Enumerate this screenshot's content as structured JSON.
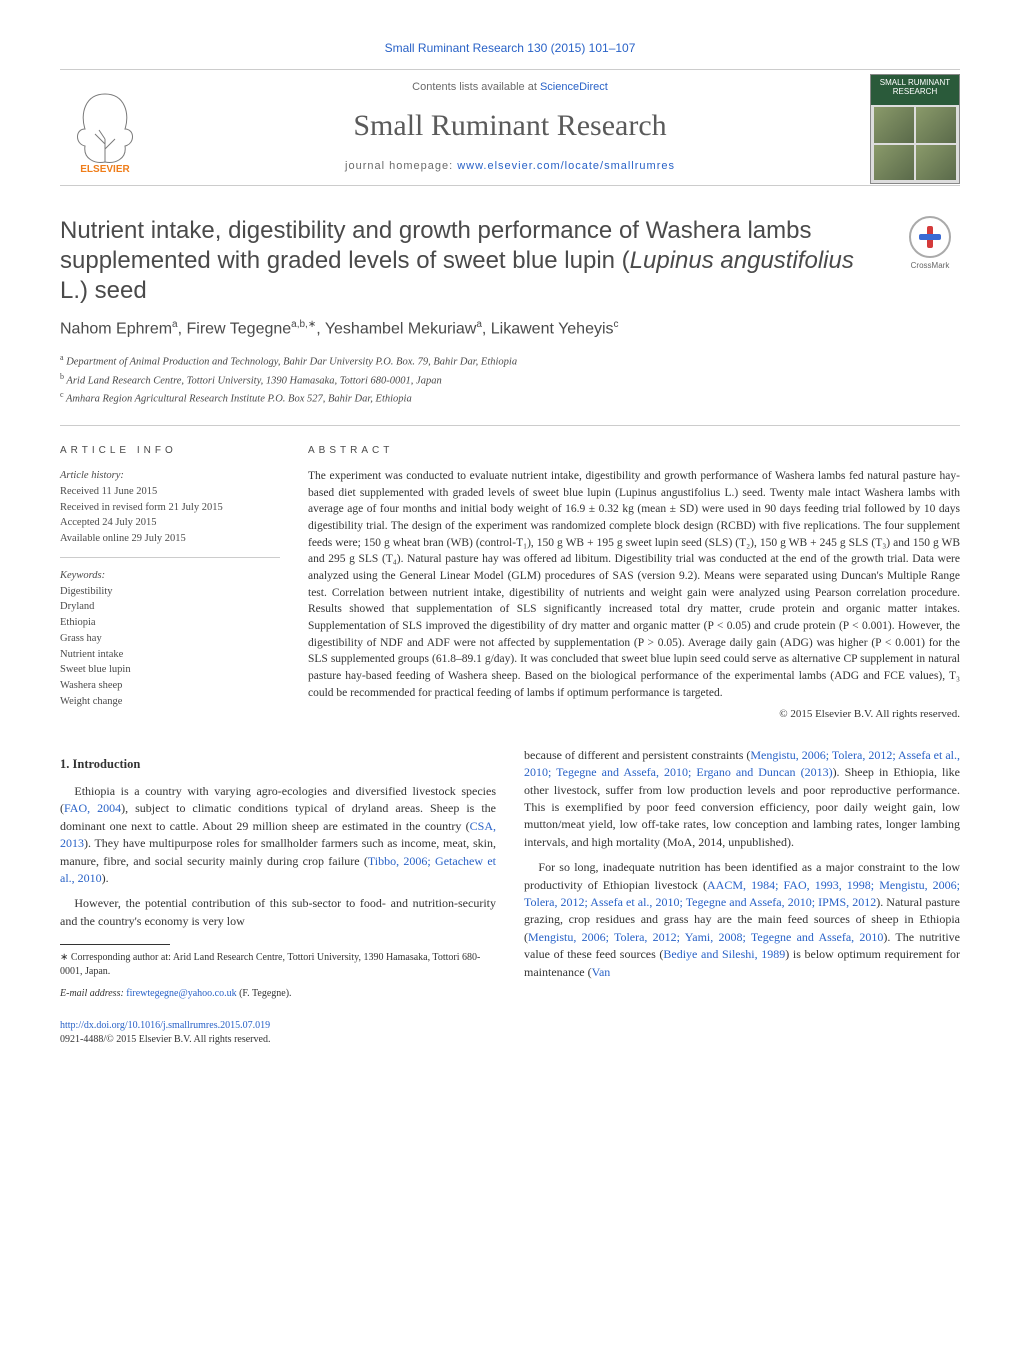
{
  "journal_ref": {
    "prefix": "Small Ruminant Research 130 (2015) 101–107",
    "link_label": "Small Ruminant Research"
  },
  "header": {
    "contents_prefix": "Contents lists available at ",
    "contents_link": "ScienceDirect",
    "journal_title": "Small Ruminant Research",
    "homepage_prefix": "journal homepage: ",
    "homepage_link": "www.elsevier.com/locate/smallrumres",
    "cover_text": "SMALL RUMINANT RESEARCH"
  },
  "crossmark_label": "CrossMark",
  "title": {
    "line1": "Nutrient intake, digestibility and growth performance of Washera lambs supplemented with graded levels of sweet blue lupin (",
    "italic": "Lupinus angustifolius",
    "line2": " L.) seed"
  },
  "authors_html": "Nahom Ephrem<sup>a</sup>, Firew Tegegne<sup>a,b,∗</sup>, Yeshambel Mekuriaw<sup>a</sup>, Likawent Yeheyis<sup>c</sup>",
  "affiliations": [
    {
      "sup": "a",
      "text": "Department of Animal Production and Technology, Bahir Dar University P.O. Box. 79, Bahir Dar, Ethiopia"
    },
    {
      "sup": "b",
      "text": "Arid Land Research Centre, Tottori University, 1390 Hamasaka, Tottori 680-0001, Japan"
    },
    {
      "sup": "c",
      "text": "Amhara Region Agricultural Research Institute P.O. Box 527, Bahir Dar, Ethiopia"
    }
  ],
  "info": {
    "heading": "article info",
    "history_label": "Article history:",
    "received": "Received 11 June 2015",
    "revised": "Received in revised form 21 July 2015",
    "accepted": "Accepted 24 July 2015",
    "online": "Available online 29 July 2015",
    "keywords_label": "Keywords:",
    "keywords": [
      "Digestibility",
      "Dryland",
      "Ethiopia",
      "Grass hay",
      "Nutrient intake",
      "Sweet blue lupin",
      "Washera sheep",
      "Weight change"
    ]
  },
  "abstract": {
    "heading": "abstract",
    "text": "The experiment was conducted to evaluate nutrient intake, digestibility and growth performance of Washera lambs fed natural pasture hay-based diet supplemented with graded levels of sweet blue lupin (Lupinus angustifolius L.) seed. Twenty male intact Washera lambs with average age of four months and initial body weight of 16.9 ± 0.32 kg (mean ± SD) were used in 90 days feeding trial followed by 10 days digestibility trial. The design of the experiment was randomized complete block design (RCBD) with five replications. The four supplement feeds were; 150 g wheat bran (WB) (control-T₁), 150 g WB + 195 g sweet lupin seed (SLS) (T₂), 150 g WB + 245 g SLS (T₃) and 150 g WB and 295 g SLS (T₄). Natural pasture hay was offered ad libitum. Digestibility trial was conducted at the end of the growth trial. Data were analyzed using the General Linear Model (GLM) procedures of SAS (version 9.2). Means were separated using Duncan's Multiple Range test. Correlation between nutrient intake, digestibility of nutrients and weight gain were analyzed using Pearson correlation procedure. Results showed that supplementation of SLS significantly increased total dry matter, crude protein and organic matter intakes. Supplementation of SLS improved the digestibility of dry matter and organic matter (P < 0.05) and crude protein (P < 0.001). However, the digestibility of NDF and ADF were not affected by supplementation (P > 0.05). Average daily gain (ADG) was higher (P < 0.001) for the SLS supplemented groups (61.8–89.1 g/day). It was concluded that sweet blue lupin seed could serve as alternative CP supplement in natural pasture hay-based feeding of Washera sheep. Based on the biological performance of the experimental lambs (ADG and FCE values), T₃ could be recommended for practical feeding of lambs if optimum performance is targeted.",
    "copyright": "© 2015 Elsevier B.V. All rights reserved."
  },
  "section1_heading": "1. Introduction",
  "intro_paras_left": [
    "Ethiopia is a country with varying agro-ecologies and diversified livestock species (<a class=\"ref\" href=\"#\">FAO, 2004</a>), subject to climatic conditions typical of dryland areas. Sheep is the dominant one next to cattle. About 29 million sheep are estimated in the country (<a class=\"ref\" href=\"#\">CSA, 2013</a>). They have multipurpose roles for smallholder farmers such as income, meat, skin, manure, fibre, and social security mainly during crop failure (<a class=\"ref\" href=\"#\">Tibbo, 2006; Getachew et al., 2010</a>).",
    "However, the potential contribution of this sub-sector to food- and nutrition-security and the country's economy is very low"
  ],
  "intro_paras_right": [
    "because of different and persistent constraints (<a class=\"ref\" href=\"#\">Mengistu, 2006; Tolera, 2012; Assefa et al., 2010; Tegegne and Assefa, 2010; Ergano and Duncan (2013)</a>). Sheep in Ethiopia, like other livestock, suffer from low production levels and poor reproductive performance. This is exemplified by poor feed conversion efficiency, poor daily weight gain, low mutton/meat yield, low off-take rates, low conception and lambing rates, longer lambing intervals, and high mortality (MoA, 2014, unpublished).",
    "For so long, inadequate nutrition has been identified as a major constraint to the low productivity of Ethiopian livestock (<a class=\"ref\" href=\"#\">AACM, 1984; FAO, 1993, 1998; Mengistu, 2006; Tolera, 2012; Assefa et al., 2010; Tegegne and Assefa, 2010; IPMS, 2012</a>). Natural pasture grazing, crop residues and grass hay are the main feed sources of sheep in Ethiopia (<a class=\"ref\" href=\"#\">Mengistu, 2006; Tolera, 2012; Yami, 2008; Tegegne and Assefa, 2010</a>). The nutritive value of these feed sources (<a class=\"ref\" href=\"#\">Bediye and Sileshi, 1989</a>) is below optimum requirement for maintenance (<a class=\"ref\" href=\"#\">Van</a>"
  ],
  "corresponding": {
    "star": "∗",
    "text": "Corresponding author at: Arid Land Research Centre, Tottori University, 1390 Hamasaka, Tottori 680-0001, Japan.",
    "email_label": "E-mail address:",
    "email": "firewtegegne@yahoo.co.uk",
    "email_after": " (F. Tegegne)."
  },
  "doi": {
    "url": "http://dx.doi.org/10.1016/j.smallrumres.2015.07.019",
    "issn_line": "0921-4488/© 2015 Elsevier B.V. All rights reserved."
  },
  "colors": {
    "link": "#2962c7",
    "text": "#333333",
    "muted": "#6a6a6a",
    "rule": "#cccccc",
    "elsevier_orange": "#ef7d1a",
    "elsevier_grey": "#7a7a7a"
  }
}
